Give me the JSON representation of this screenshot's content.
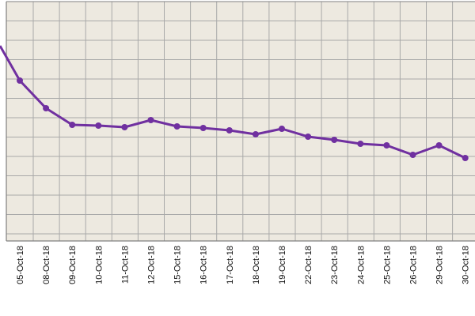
{
  "chart_data": {
    "type": "line",
    "title": "",
    "xlabel": "",
    "ylabel": "",
    "grid": true,
    "legend": "none",
    "categories": [
      "05-Oct-18",
      "08-Oct-18",
      "09-Oct-18",
      "10-Oct-18",
      "11-Oct-18",
      "12-Oct-18",
      "15-Oct-18",
      "16-Oct-18",
      "17-Oct-18",
      "18-Oct-18",
      "19-Oct-18",
      "22-Oct-18",
      "23-Oct-18",
      "24-Oct-18",
      "25-Oct-18",
      "26-Oct-18",
      "29-Oct-18",
      "30-Oct-18"
    ],
    "series": [
      {
        "values": [
          102,
          137,
          158,
          159,
          161,
          152,
          160,
          162,
          165,
          170,
          163,
          173,
          177,
          182,
          184,
          196,
          184,
          200
        ],
        "start_value": 58
      }
    ],
    "colors": {
      "line": "#7030a0",
      "plot_background": "#ede9e0",
      "grid": "#a9a9a9",
      "axis": "#808080",
      "page_background": "#ffffff"
    }
  }
}
